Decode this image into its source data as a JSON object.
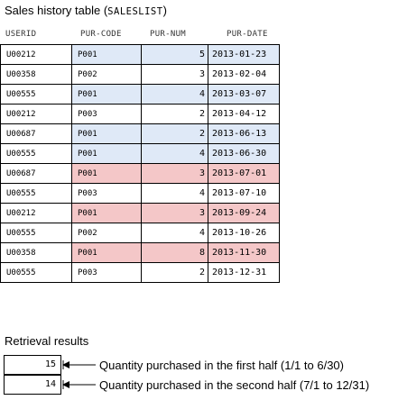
{
  "title": {
    "text": "Sales history table (",
    "code": "SALESLIST",
    "close": ")"
  },
  "columns": [
    "USERID",
    "PUR-CODE",
    "PUR-NUM",
    "PUR-DATE"
  ],
  "rows": [
    {
      "userid": "U00212",
      "pur_code": "P001",
      "pur_num": "5",
      "pur_date": "2013-01-23",
      "highlight": "blue"
    },
    {
      "userid": "U00358",
      "pur_code": "P002",
      "pur_num": "3",
      "pur_date": "2013-02-04",
      "highlight": "none"
    },
    {
      "userid": "U00555",
      "pur_code": "P001",
      "pur_num": "4",
      "pur_date": "2013-03-07",
      "highlight": "blue"
    },
    {
      "userid": "U00212",
      "pur_code": "P003",
      "pur_num": "2",
      "pur_date": "2013-04-12",
      "highlight": "none"
    },
    {
      "userid": "U00687",
      "pur_code": "P001",
      "pur_num": "2",
      "pur_date": "2013-06-13",
      "highlight": "blue"
    },
    {
      "userid": "U00555",
      "pur_code": "P001",
      "pur_num": "4",
      "pur_date": "2013-06-30",
      "highlight": "blue"
    },
    {
      "userid": "U00687",
      "pur_code": "P001",
      "pur_num": "3",
      "pur_date": "2013-07-01",
      "highlight": "pink"
    },
    {
      "userid": "U00555",
      "pur_code": "P003",
      "pur_num": "4",
      "pur_date": "2013-07-10",
      "highlight": "none"
    },
    {
      "userid": "U00212",
      "pur_code": "P001",
      "pur_num": "3",
      "pur_date": "2013-09-24",
      "highlight": "pink"
    },
    {
      "userid": "U00555",
      "pur_code": "P002",
      "pur_num": "4",
      "pur_date": "2013-10-26",
      "highlight": "none"
    },
    {
      "userid": "U00358",
      "pur_code": "P001",
      "pur_num": "8",
      "pur_date": "2013-11-30",
      "highlight": "pink"
    },
    {
      "userid": "U00555",
      "pur_code": "P003",
      "pur_num": "2",
      "pur_date": "2013-12-31",
      "highlight": "none"
    }
  ],
  "retrieval": {
    "title": "Retrieval results",
    "results": [
      {
        "value": "15",
        "label": "Quantity purchased in the first half (1/1 to 6/30)"
      },
      {
        "value": "14",
        "label": "Quantity purchased in the second half (7/1 to 12/31)"
      }
    ]
  },
  "colors": {
    "blue_highlight": "#dfe9f7",
    "pink_highlight": "#f4c7c8",
    "border": "#000000"
  }
}
